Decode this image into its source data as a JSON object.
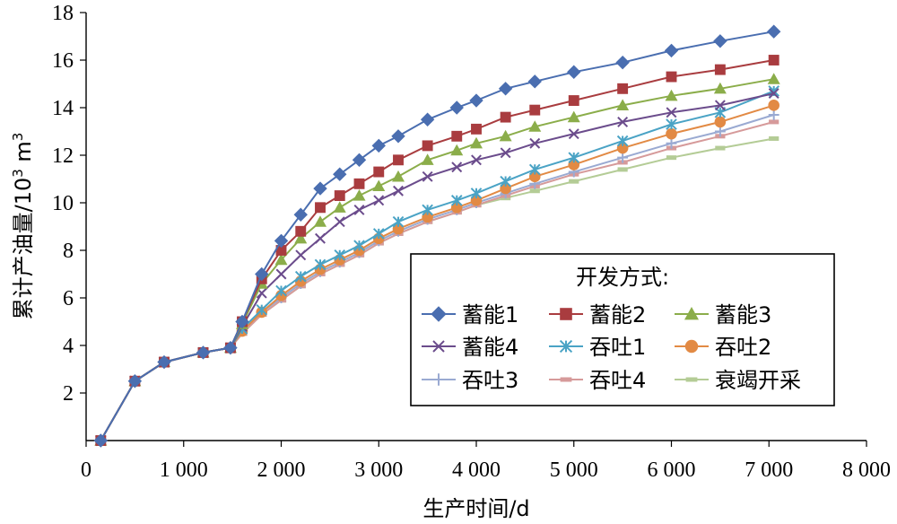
{
  "chart_data": {
    "type": "line",
    "xlabel": "生产时间/d",
    "ylabel": "累计产油量/10³ m³",
    "ylabel_main": "累计产油量/10",
    "ylabel_sup": "3",
    "ylabel_unit": " m",
    "ylabel_unit_sup": "3",
    "xlim": [
      0,
      8000
    ],
    "ylim": [
      0,
      18
    ],
    "x_ticks": [
      0,
      1000,
      2000,
      3000,
      4000,
      5000,
      6000,
      7000,
      8000
    ],
    "x_tick_labels": [
      "0",
      "1 000",
      "2 000",
      "3 000",
      "4 000",
      "5 000",
      "6 000",
      "7 000",
      "8 000"
    ],
    "y_ticks": [
      2,
      4,
      6,
      8,
      10,
      12,
      14,
      16,
      18
    ],
    "y_tick_labels": [
      "2",
      "4",
      "6",
      "8",
      "10",
      "12",
      "14",
      "16",
      "18"
    ],
    "grid": false,
    "legend": {
      "title": "开发方式:",
      "position": "bottom-right",
      "columns": 3
    },
    "series": [
      {
        "name": "蓄能1",
        "color": "#4a6eb0",
        "marker": "diamond",
        "x": [
          150,
          500,
          800,
          1200,
          1480,
          1600,
          1800,
          2000,
          2200,
          2400,
          2600,
          2800,
          3000,
          3200,
          3500,
          3800,
          4000,
          4300,
          4600,
          5000,
          5500,
          6000,
          6500,
          7050
        ],
        "y": [
          0,
          2.5,
          3.3,
          3.7,
          3.9,
          5.0,
          7.0,
          8.4,
          9.5,
          10.6,
          11.2,
          11.8,
          12.4,
          12.8,
          13.5,
          14.0,
          14.3,
          14.8,
          15.1,
          15.5,
          15.9,
          16.4,
          16.8,
          17.2
        ]
      },
      {
        "name": "蓄能2",
        "color": "#a93c3f",
        "marker": "square",
        "x": [
          150,
          500,
          800,
          1200,
          1480,
          1600,
          1800,
          2000,
          2200,
          2400,
          2600,
          2800,
          3000,
          3200,
          3500,
          3800,
          4000,
          4300,
          4600,
          5000,
          5500,
          6000,
          6500,
          7050
        ],
        "y": [
          0,
          2.5,
          3.3,
          3.7,
          3.9,
          5.0,
          6.8,
          8.0,
          8.8,
          9.8,
          10.3,
          10.8,
          11.3,
          11.8,
          12.4,
          12.8,
          13.1,
          13.6,
          13.9,
          14.3,
          14.8,
          15.3,
          15.6,
          16.0
        ]
      },
      {
        "name": "蓄能3",
        "color": "#8bad4a",
        "marker": "triangle",
        "x": [
          150,
          500,
          800,
          1200,
          1480,
          1600,
          1800,
          2000,
          2200,
          2400,
          2600,
          2800,
          3000,
          3200,
          3500,
          3800,
          4000,
          4300,
          4600,
          5000,
          5500,
          6000,
          6500,
          7050
        ],
        "y": [
          0,
          2.5,
          3.3,
          3.7,
          3.9,
          4.9,
          6.6,
          7.6,
          8.5,
          9.2,
          9.8,
          10.3,
          10.7,
          11.1,
          11.8,
          12.2,
          12.5,
          12.8,
          13.2,
          13.6,
          14.1,
          14.5,
          14.8,
          15.2
        ]
      },
      {
        "name": "蓄能4",
        "color": "#6b4c8c",
        "marker": "x",
        "x": [
          150,
          500,
          800,
          1200,
          1480,
          1600,
          1800,
          2000,
          2200,
          2400,
          2600,
          2800,
          3000,
          3200,
          3500,
          3800,
          4000,
          4300,
          4600,
          5000,
          5500,
          6000,
          6500,
          7050
        ],
        "y": [
          0,
          2.5,
          3.3,
          3.7,
          3.9,
          4.8,
          6.2,
          7.0,
          7.8,
          8.5,
          9.2,
          9.7,
          10.1,
          10.5,
          11.1,
          11.5,
          11.8,
          12.1,
          12.5,
          12.9,
          13.4,
          13.8,
          14.1,
          14.6
        ]
      },
      {
        "name": "吞吐1",
        "color": "#4aa3c5",
        "marker": "asterisk",
        "x": [
          150,
          500,
          800,
          1200,
          1480,
          1600,
          1800,
          2000,
          2200,
          2400,
          2600,
          2800,
          3000,
          3200,
          3500,
          3800,
          4000,
          4300,
          4600,
          5000,
          5500,
          6000,
          6500,
          7050
        ],
        "y": [
          0,
          2.5,
          3.3,
          3.7,
          3.9,
          4.7,
          5.5,
          6.3,
          6.9,
          7.4,
          7.8,
          8.2,
          8.7,
          9.2,
          9.7,
          10.1,
          10.4,
          10.9,
          11.4,
          11.9,
          12.6,
          13.3,
          13.8,
          14.7
        ]
      },
      {
        "name": "吞吐2",
        "color": "#e28a44",
        "marker": "circle",
        "x": [
          150,
          500,
          800,
          1200,
          1480,
          1600,
          1800,
          2000,
          2200,
          2400,
          2600,
          2800,
          3000,
          3200,
          3500,
          3800,
          4000,
          4300,
          4600,
          5000,
          5500,
          6000,
          6500,
          7050
        ],
        "y": [
          0,
          2.5,
          3.3,
          3.7,
          3.9,
          4.6,
          5.4,
          6.1,
          6.7,
          7.2,
          7.6,
          8.0,
          8.5,
          8.9,
          9.4,
          9.8,
          10.1,
          10.6,
          11.1,
          11.6,
          12.3,
          12.9,
          13.4,
          14.1
        ]
      },
      {
        "name": "吞吐3",
        "color": "#9aaad2",
        "marker": "plus",
        "x": [
          150,
          500,
          800,
          1200,
          1480,
          1600,
          1800,
          2000,
          2200,
          2400,
          2600,
          2800,
          3000,
          3200,
          3500,
          3800,
          4000,
          4300,
          4600,
          5000,
          5500,
          6000,
          6500,
          7050
        ],
        "y": [
          0,
          2.5,
          3.3,
          3.7,
          3.9,
          4.6,
          5.4,
          6.0,
          6.6,
          7.1,
          7.5,
          7.9,
          8.4,
          8.8,
          9.3,
          9.7,
          10.0,
          10.4,
          10.8,
          11.3,
          11.9,
          12.5,
          13.0,
          13.7
        ]
      },
      {
        "name": "吞吐4",
        "color": "#d69a9a",
        "marker": "dash",
        "x": [
          150,
          500,
          800,
          1200,
          1480,
          1600,
          1800,
          2000,
          2200,
          2400,
          2600,
          2800,
          3000,
          3200,
          3500,
          3800,
          4000,
          4300,
          4600,
          5000,
          5500,
          6000,
          6500,
          7050
        ],
        "y": [
          0,
          2.5,
          3.3,
          3.7,
          3.9,
          4.5,
          5.3,
          5.9,
          6.5,
          7.0,
          7.4,
          7.8,
          8.3,
          8.7,
          9.2,
          9.6,
          9.9,
          10.3,
          10.7,
          11.2,
          11.7,
          12.3,
          12.8,
          13.4
        ]
      },
      {
        "name": "衰竭开采",
        "color": "#b4cc96",
        "marker": "dash",
        "x": [
          150,
          500,
          800,
          1200,
          1480,
          1600,
          1800,
          2000,
          2200,
          2400,
          2600,
          2800,
          3000,
          3200,
          3500,
          3800,
          4000,
          4300,
          4600,
          5000,
          5500,
          6000,
          6500,
          7050
        ],
        "y": [
          0,
          2.5,
          3.3,
          3.7,
          3.9,
          4.5,
          5.3,
          5.9,
          6.5,
          7.0,
          7.4,
          7.8,
          8.3,
          8.7,
          9.2,
          9.6,
          9.9,
          10.2,
          10.5,
          10.9,
          11.4,
          11.9,
          12.3,
          12.7
        ]
      }
    ]
  }
}
